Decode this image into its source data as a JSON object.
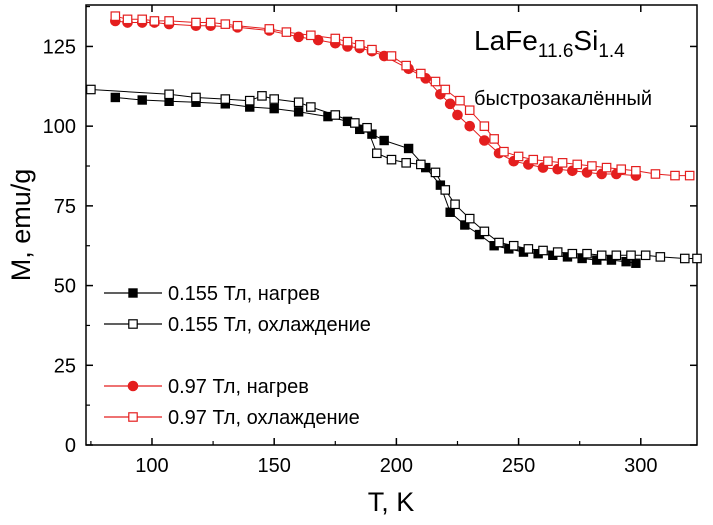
{
  "chart_data": {
    "type": "scatter",
    "title": "",
    "xlabel": "T, K",
    "ylabel": "M, emu/g",
    "xlim": [
      73,
      323
    ],
    "ylim": [
      0,
      138
    ],
    "x_ticks": [
      100,
      150,
      200,
      250,
      300
    ],
    "y_ticks": [
      0,
      25,
      50,
      75,
      100,
      125
    ],
    "grid": false,
    "legend_position": "bottom-left",
    "annotations": {
      "formula_main": "LaFe",
      "formula_sub1": "11.6",
      "formula_mid": "Si",
      "formula_sub2": "1.4",
      "note": "быстрозакалённый"
    },
    "series": [
      {
        "name": "0.155 Тл, нагрев",
        "color": "#000000",
        "marker": "square-filled",
        "points": [
          [
            85,
            109
          ],
          [
            96,
            108.2
          ],
          [
            107,
            107.8
          ],
          [
            118,
            107.5
          ],
          [
            130,
            107
          ],
          [
            140,
            106
          ],
          [
            150,
            105.5
          ],
          [
            160,
            104.5
          ],
          [
            172,
            103
          ],
          [
            180,
            101.5
          ],
          [
            185,
            99
          ],
          [
            190,
            97.5
          ],
          [
            195,
            95.5
          ],
          [
            205,
            93
          ],
          [
            212,
            87
          ],
          [
            218,
            81.5
          ],
          [
            222,
            73
          ],
          [
            228,
            69
          ],
          [
            234,
            66
          ],
          [
            240,
            62.5
          ],
          [
            246,
            61.5
          ],
          [
            252,
            60.5
          ],
          [
            258,
            60
          ],
          [
            264,
            59.5
          ],
          [
            270,
            59
          ],
          [
            276,
            58.5
          ],
          [
            282,
            58
          ],
          [
            288,
            58
          ],
          [
            294,
            57.5
          ],
          [
            298,
            57
          ]
        ]
      },
      {
        "name": "0.155 Тл, охлаждение",
        "color": "#000000",
        "marker": "square-open",
        "points": [
          [
            75,
            111.5
          ],
          [
            107,
            110
          ],
          [
            118,
            109
          ],
          [
            130,
            108.5
          ],
          [
            140,
            108
          ],
          [
            145,
            109.5
          ],
          [
            150,
            108.5
          ],
          [
            160,
            107.5
          ],
          [
            165,
            106
          ],
          [
            175,
            103.5
          ],
          [
            183,
            101
          ],
          [
            188,
            99.5
          ],
          [
            192,
            91.5
          ],
          [
            198,
            89.5
          ],
          [
            204,
            88.5
          ],
          [
            210,
            88
          ],
          [
            216,
            85.5
          ],
          [
            220,
            80
          ],
          [
            224,
            75.5
          ],
          [
            230,
            71
          ],
          [
            236,
            67
          ],
          [
            242,
            63.5
          ],
          [
            248,
            62.5
          ],
          [
            254,
            61.5
          ],
          [
            260,
            61
          ],
          [
            266,
            60.5
          ],
          [
            272,
            60
          ],
          [
            278,
            60
          ],
          [
            284,
            59.5
          ],
          [
            290,
            59.5
          ],
          [
            296,
            59.5
          ],
          [
            302,
            59.5
          ],
          [
            308,
            59
          ],
          [
            318,
            58.5
          ],
          [
            323,
            58.5
          ]
        ]
      },
      {
        "name": "0.97 Тл, нагрев",
        "color": "#e41e1e",
        "marker": "circle-filled",
        "points": [
          [
            85,
            133
          ],
          [
            90,
            132.5
          ],
          [
            96,
            132.5
          ],
          [
            101,
            132.5
          ],
          [
            107,
            132
          ],
          [
            118,
            131.5
          ],
          [
            124,
            131.5
          ],
          [
            135,
            131
          ],
          [
            148,
            130
          ],
          [
            160,
            128
          ],
          [
            168,
            127
          ],
          [
            175,
            126
          ],
          [
            180,
            125
          ],
          [
            185,
            124.5
          ],
          [
            190,
            123.5
          ],
          [
            195,
            122
          ],
          [
            205,
            118
          ],
          [
            212,
            115
          ],
          [
            218,
            110
          ],
          [
            222,
            107
          ],
          [
            225,
            103.5
          ],
          [
            230,
            100
          ],
          [
            236,
            95.5
          ],
          [
            242,
            91.5
          ],
          [
            248,
            89
          ],
          [
            254,
            88
          ],
          [
            260,
            87
          ],
          [
            266,
            86.5
          ],
          [
            272,
            86
          ],
          [
            278,
            85.5
          ],
          [
            284,
            85
          ],
          [
            290,
            85
          ],
          [
            298,
            84.5
          ]
        ]
      },
      {
        "name": "0.97 Тл, охлаждение",
        "color": "#e41e1e",
        "marker": "circle-open-square",
        "points": [
          [
            85,
            134.5
          ],
          [
            90,
            133.5
          ],
          [
            96,
            133.5
          ],
          [
            101,
            133
          ],
          [
            107,
            133
          ],
          [
            118,
            132.5
          ],
          [
            124,
            132.5
          ],
          [
            130,
            132
          ],
          [
            135,
            131.5
          ],
          [
            148,
            130.5
          ],
          [
            155,
            129.5
          ],
          [
            165,
            128.5
          ],
          [
            175,
            127.5
          ],
          [
            180,
            126.5
          ],
          [
            185,
            125.5
          ],
          [
            190,
            124
          ],
          [
            198,
            122
          ],
          [
            204,
            119
          ],
          [
            210,
            116.5
          ],
          [
            216,
            114
          ],
          [
            220,
            111.5
          ],
          [
            226,
            108
          ],
          [
            230,
            105
          ],
          [
            236,
            100
          ],
          [
            240,
            96
          ],
          [
            244,
            92
          ],
          [
            250,
            90.5
          ],
          [
            256,
            89.5
          ],
          [
            262,
            89
          ],
          [
            268,
            88.5
          ],
          [
            274,
            88
          ],
          [
            280,
            87.5
          ],
          [
            286,
            87
          ],
          [
            292,
            86.5
          ],
          [
            298,
            86
          ],
          [
            306,
            85
          ],
          [
            314,
            84.5
          ],
          [
            320,
            84.5
          ]
        ]
      }
    ]
  }
}
